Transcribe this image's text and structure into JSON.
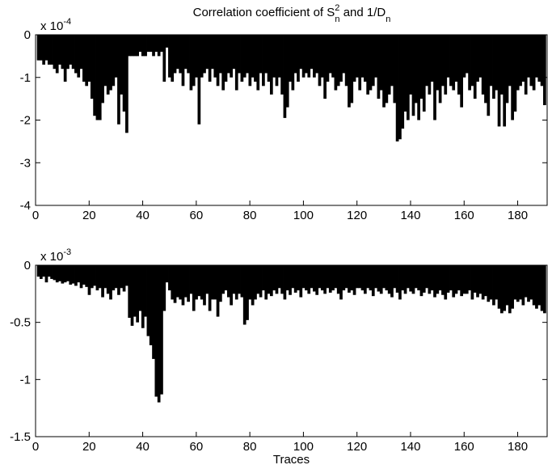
{
  "chart_data": [
    {
      "type": "bar",
      "title": {
        "text": "Correlation coefficient of S",
        "sup": "2",
        "sub": "n",
        "text2": " and 1/D",
        "sub2": "n"
      },
      "y_multiplier": {
        "base": "x 10",
        "exponent": "-4"
      },
      "color": "#000000",
      "x": [
        1,
        2,
        3,
        4,
        5,
        6,
        7,
        8,
        9,
        10,
        11,
        12,
        13,
        14,
        15,
        16,
        17,
        18,
        19,
        20,
        21,
        22,
        23,
        24,
        25,
        26,
        27,
        28,
        29,
        30,
        31,
        32,
        33,
        34,
        35,
        36,
        37,
        38,
        39,
        40,
        41,
        42,
        43,
        44,
        45,
        46,
        47,
        48,
        49,
        50,
        51,
        52,
        53,
        54,
        55,
        56,
        57,
        58,
        59,
        60,
        61,
        62,
        63,
        64,
        65,
        66,
        67,
        68,
        69,
        70,
        71,
        72,
        73,
        74,
        75,
        76,
        77,
        78,
        79,
        80,
        81,
        82,
        83,
        84,
        85,
        86,
        87,
        88,
        89,
        90,
        91,
        92,
        93,
        94,
        95,
        96,
        97,
        98,
        99,
        100,
        101,
        102,
        103,
        104,
        105,
        106,
        107,
        108,
        109,
        110,
        111,
        112,
        113,
        114,
        115,
        116,
        117,
        118,
        119,
        120,
        121,
        122,
        123,
        124,
        125,
        126,
        127,
        128,
        129,
        130,
        131,
        132,
        133,
        134,
        135,
        136,
        137,
        138,
        139,
        140,
        141,
        142,
        143,
        144,
        145,
        146,
        147,
        148,
        149,
        150,
        151,
        152,
        153,
        154,
        155,
        156,
        157,
        158,
        159,
        160,
        161,
        162,
        163,
        164,
        165,
        166,
        167,
        168,
        169,
        170,
        171,
        172,
        173,
        174,
        175,
        176,
        177,
        178,
        179,
        180,
        181,
        182,
        183,
        184,
        185,
        186,
        187,
        188,
        189,
        190
      ],
      "values": [
        -0.6,
        -0.6,
        -0.7,
        -0.6,
        -0.7,
        -0.7,
        -0.8,
        -0.9,
        -0.7,
        -0.8,
        -1.1,
        -0.8,
        -0.7,
        -0.8,
        -0.9,
        -1.0,
        -0.8,
        -1.1,
        -1.2,
        -1.1,
        -1.5,
        -1.9,
        -2.0,
        -2.0,
        -1.6,
        -1.2,
        -1.4,
        -1.3,
        -1.2,
        -1.0,
        -2.1,
        -1.4,
        -1.8,
        -2.3,
        -0.5,
        -0.5,
        -0.5,
        -0.5,
        -0.4,
        -0.5,
        -0.5,
        -0.4,
        -0.4,
        -0.5,
        -0.4,
        -0.5,
        -0.4,
        -1.1,
        -0.3,
        -1.0,
        -1.1,
        -0.9,
        -0.8,
        -0.9,
        -1.2,
        -0.8,
        -0.9,
        -1.3,
        -1.2,
        -1.0,
        -2.1,
        -1.0,
        -0.9,
        -0.8,
        -1.1,
        -0.8,
        -1.0,
        -1.2,
        -0.9,
        -1.3,
        -1.1,
        -0.9,
        -1.0,
        -0.8,
        -1.3,
        -0.9,
        -1.1,
        -1.0,
        -0.9,
        -1.2,
        -1.0,
        -1.1,
        -1.3,
        -0.9,
        -1.2,
        -0.9,
        -1.1,
        -1.4,
        -1.0,
        -1.2,
        -1.0,
        -1.4,
        -1.95,
        -1.7,
        -1.1,
        -1.3,
        -0.9,
        -1.1,
        -0.8,
        -1.0,
        -0.9,
        -1.0,
        -0.8,
        -1.0,
        -0.9,
        -1.2,
        -1.0,
        -1.5,
        -1.1,
        -0.9,
        -1.0,
        -1.3,
        -1.2,
        -1.1,
        -0.9,
        -1.2,
        -1.7,
        -1.6,
        -1.1,
        -1.0,
        -1.3,
        -1.0,
        -1.1,
        -1.4,
        -1.3,
        -1.2,
        -1.0,
        -1.5,
        -1.3,
        -1.7,
        -1.6,
        -1.4,
        -1.2,
        -1.6,
        -2.5,
        -2.45,
        -2.2,
        -1.8,
        -2.0,
        -1.4,
        -1.9,
        -1.6,
        -2.0,
        -1.5,
        -1.8,
        -1.2,
        -1.4,
        -1.1,
        -2.0,
        -1.3,
        -1.6,
        -1.2,
        -1.4,
        -1.0,
        -1.2,
        -1.3,
        -1.1,
        -1.4,
        -1.7,
        -1.0,
        -0.9,
        -1.3,
        -1.2,
        -1.5,
        -1.1,
        -1.0,
        -1.4,
        -1.6,
        -1.9,
        -1.2,
        -1.5,
        -1.3,
        -2.15,
        -1.4,
        -2.15,
        -1.6,
        -1.2,
        -2.0,
        -1.8,
        -1.3,
        -1.2,
        -1.1,
        -1.4,
        -1.0,
        -1.2,
        -1.3,
        -1.0,
        -1.1,
        -1.2,
        -1.65
      ],
      "xlim": [
        0,
        191
      ],
      "xticks": [
        0,
        20,
        40,
        60,
        80,
        100,
        120,
        140,
        160,
        180
      ],
      "ylim": [
        -4,
        0
      ],
      "yticks": [
        0,
        -1,
        -2,
        -3,
        -4
      ]
    },
    {
      "type": "bar",
      "y_multiplier": {
        "base": "x 10",
        "exponent": "-3"
      },
      "xlabel": "Traces",
      "color": "#000000",
      "x": [
        1,
        2,
        3,
        4,
        5,
        6,
        7,
        8,
        9,
        10,
        11,
        12,
        13,
        14,
        15,
        16,
        17,
        18,
        19,
        20,
        21,
        22,
        23,
        24,
        25,
        26,
        27,
        28,
        29,
        30,
        31,
        32,
        33,
        34,
        35,
        36,
        37,
        38,
        39,
        40,
        41,
        42,
        43,
        44,
        45,
        46,
        47,
        48,
        49,
        50,
        51,
        52,
        53,
        54,
        55,
        56,
        57,
        58,
        59,
        60,
        61,
        62,
        63,
        64,
        65,
        66,
        67,
        68,
        69,
        70,
        71,
        72,
        73,
        74,
        75,
        76,
        77,
        78,
        79,
        80,
        81,
        82,
        83,
        84,
        85,
        86,
        87,
        88,
        89,
        90,
        91,
        92,
        93,
        94,
        95,
        96,
        97,
        98,
        99,
        100,
        101,
        102,
        103,
        104,
        105,
        106,
        107,
        108,
        109,
        110,
        111,
        112,
        113,
        114,
        115,
        116,
        117,
        118,
        119,
        120,
        121,
        122,
        123,
        124,
        125,
        126,
        127,
        128,
        129,
        130,
        131,
        132,
        133,
        134,
        135,
        136,
        137,
        138,
        139,
        140,
        141,
        142,
        143,
        144,
        145,
        146,
        147,
        148,
        149,
        150,
        151,
        152,
        153,
        154,
        155,
        156,
        157,
        158,
        159,
        160,
        161,
        162,
        163,
        164,
        165,
        166,
        167,
        168,
        169,
        170,
        171,
        172,
        173,
        174,
        175,
        176,
        177,
        178,
        179,
        180,
        181,
        182,
        183,
        184,
        185,
        186,
        187,
        188,
        189,
        190
      ],
      "values": [
        -0.1,
        -0.12,
        -0.1,
        -0.15,
        -0.1,
        -0.12,
        -0.13,
        -0.15,
        -0.14,
        -0.16,
        -0.15,
        -0.14,
        -0.17,
        -0.16,
        -0.18,
        -0.15,
        -0.2,
        -0.17,
        -0.19,
        -0.26,
        -0.2,
        -0.18,
        -0.22,
        -0.2,
        -0.28,
        -0.2,
        -0.25,
        -0.3,
        -0.22,
        -0.2,
        -0.26,
        -0.2,
        -0.23,
        -0.18,
        -0.46,
        -0.53,
        -0.45,
        -0.5,
        -0.4,
        -0.55,
        -0.45,
        -0.62,
        -0.7,
        -0.82,
        -1.15,
        -1.2,
        -1.13,
        -0.4,
        -0.15,
        -0.22,
        -0.3,
        -0.33,
        -0.28,
        -0.3,
        -0.35,
        -0.28,
        -0.32,
        -0.25,
        -0.4,
        -0.3,
        -0.27,
        -0.3,
        -0.35,
        -0.25,
        -0.4,
        -0.3,
        -0.3,
        -0.45,
        -0.32,
        -0.25,
        -0.22,
        -0.28,
        -0.35,
        -0.25,
        -0.3,
        -0.25,
        -0.28,
        -0.52,
        -0.48,
        -0.3,
        -0.35,
        -0.3,
        -0.25,
        -0.28,
        -0.22,
        -0.3,
        -0.25,
        -0.27,
        -0.22,
        -0.25,
        -0.2,
        -0.25,
        -0.3,
        -0.22,
        -0.26,
        -0.2,
        -0.24,
        -0.22,
        -0.28,
        -0.2,
        -0.22,
        -0.25,
        -0.2,
        -0.23,
        -0.26,
        -0.2,
        -0.22,
        -0.25,
        -0.2,
        -0.24,
        -0.22,
        -0.2,
        -0.25,
        -0.3,
        -0.22,
        -0.2,
        -0.24,
        -0.22,
        -0.26,
        -0.2,
        -0.2,
        -0.22,
        -0.25,
        -0.2,
        -0.22,
        -0.27,
        -0.2,
        -0.23,
        -0.25,
        -0.2,
        -0.22,
        -0.25,
        -0.28,
        -0.2,
        -0.24,
        -0.3,
        -0.22,
        -0.25,
        -0.2,
        -0.23,
        -0.25,
        -0.2,
        -0.22,
        -0.27,
        -0.24,
        -0.2,
        -0.25,
        -0.22,
        -0.28,
        -0.25,
        -0.22,
        -0.26,
        -0.3,
        -0.24,
        -0.22,
        -0.28,
        -0.25,
        -0.22,
        -0.27,
        -0.25,
        -0.25,
        -0.22,
        -0.3,
        -0.24,
        -0.28,
        -0.25,
        -0.3,
        -0.27,
        -0.32,
        -0.3,
        -0.35,
        -0.3,
        -0.38,
        -0.42,
        -0.4,
        -0.35,
        -0.42,
        -0.38,
        -0.3,
        -0.32,
        -0.3,
        -0.35,
        -0.28,
        -0.32,
        -0.3,
        -0.35,
        -0.38,
        -0.35,
        -0.4,
        -0.42
      ],
      "xlim": [
        0,
        191
      ],
      "xticks": [
        0,
        20,
        40,
        60,
        80,
        100,
        120,
        140,
        160,
        180
      ],
      "ylim": [
        -1.5,
        0
      ],
      "yticks": [
        0,
        -0.5,
        -1,
        -1.5
      ]
    }
  ]
}
